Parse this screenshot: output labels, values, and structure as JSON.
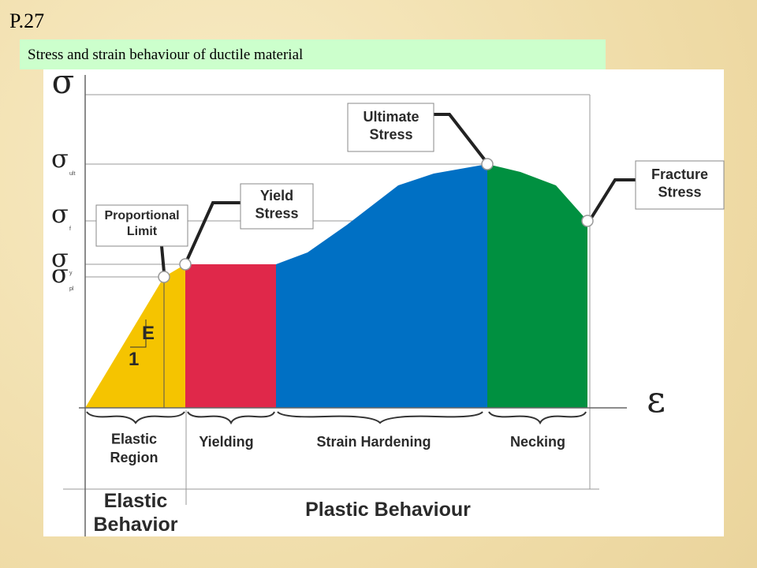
{
  "header": {
    "page": "P.27",
    "subtitle": "Stress and strain behaviour of ductile material"
  },
  "diagram": {
    "axes": {
      "stress_symbol": "σ",
      "strain_symbol": "ε"
    },
    "stress_levels": [
      {
        "symbol": "σ",
        "subscript": "ult"
      },
      {
        "symbol": "σ",
        "subscript": "f"
      },
      {
        "symbol": "σ",
        "subscript": "y"
      },
      {
        "symbol": "σ",
        "subscript": "pl"
      }
    ],
    "callouts": {
      "ultimate": "Ultimate Stress",
      "yield": "Yield Stress",
      "proportional": "Proportional Limit",
      "fracture": "Fracture Stress"
    },
    "slope": {
      "modulus": "E",
      "unit": "1"
    },
    "regions": [
      "Elastic Region",
      "Yielding",
      "Strain Hardening",
      "Necking"
    ],
    "behaviours": [
      "Elastic Behavior",
      "Plastic Behaviour"
    ]
  }
}
